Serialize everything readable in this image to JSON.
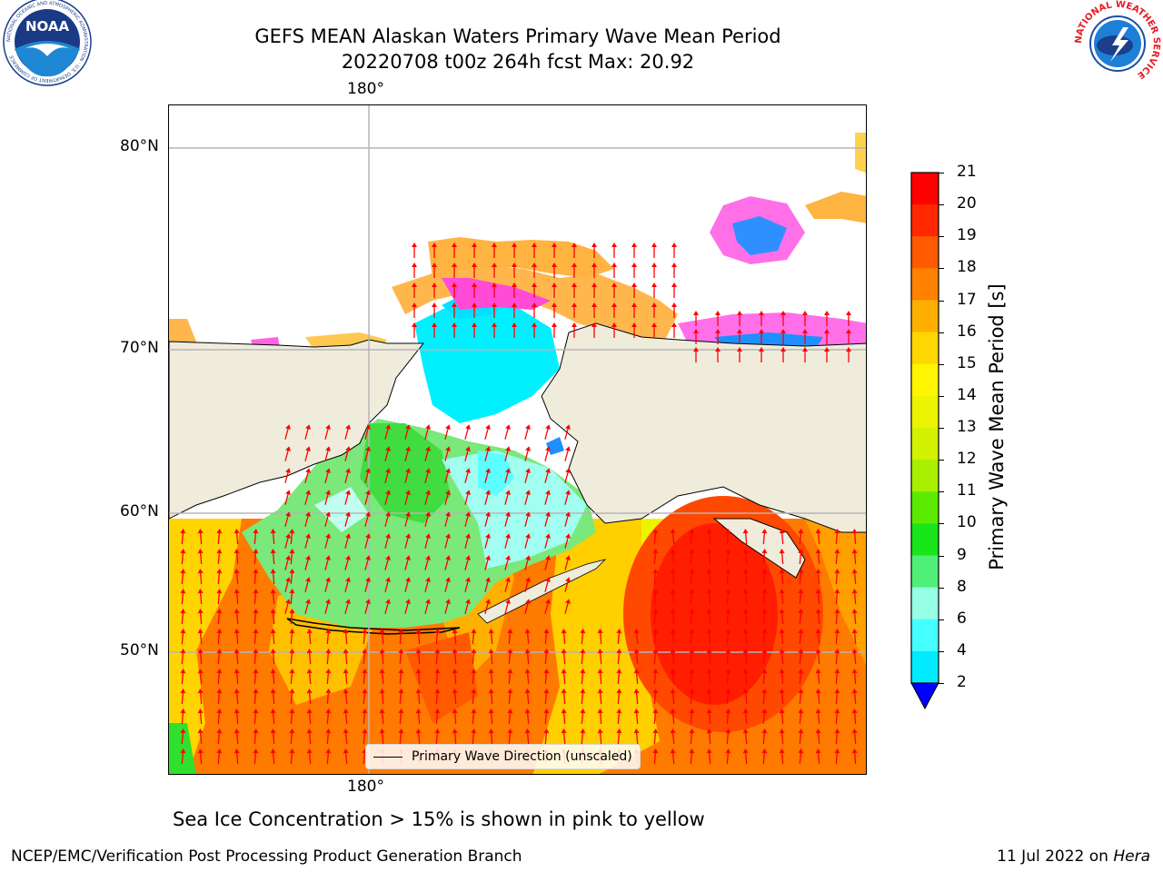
{
  "header": {
    "title_line1": "GEFS MEAN Alaskan Waters Primary Wave Mean Period",
    "title_line2": "20220708 t00z 264h fcst   Max: 20.92"
  },
  "map": {
    "lon_label_top": "180°",
    "lon_label_bottom": "180°",
    "lat_labels": [
      "80°N",
      "70°N",
      "60°N",
      "50°N"
    ],
    "colors": {
      "land": "#efecdc",
      "gridline": "#b5b5b5",
      "arrow": "#ff0000",
      "coast": "#000000"
    }
  },
  "legend": {
    "label": "Primary Wave Direction (unscaled)"
  },
  "colorbar": {
    "label": "Primary Wave Mean Period [s]",
    "ticks": [
      "21",
      "20",
      "19",
      "18",
      "17",
      "16",
      "15",
      "14",
      "13",
      "12",
      "11",
      "10",
      "9",
      "8",
      "6",
      "4",
      "2"
    ],
    "colors": [
      "#ff0000",
      "#ff2800",
      "#ff5a00",
      "#ff8200",
      "#ffaf00",
      "#ffd700",
      "#fff500",
      "#edf400",
      "#d2f200",
      "#a8f000",
      "#5aeb00",
      "#19e619",
      "#50f078",
      "#96ffe6",
      "#46ffff",
      "#00ebff",
      "#0096ff",
      "#0000ff"
    ]
  },
  "caption": "Sea Ice Concentration > 15% is shown in pink to yellow",
  "footer": {
    "left": "NCEP/EMC/Verification Post Processing Product Generation Branch",
    "right_prefix": "11 Jul 2022 on ",
    "right_machine": "Hera"
  },
  "logos": {
    "noaa_text": "NOAA",
    "noaa_ring_text": "NATIONAL OCEANIC AND ATMOSPHERIC ADMINISTRATION · U.S. DEPARTMENT OF COMMERCE",
    "nws_ring_text": "NATIONAL WEATHER SERVICE"
  }
}
